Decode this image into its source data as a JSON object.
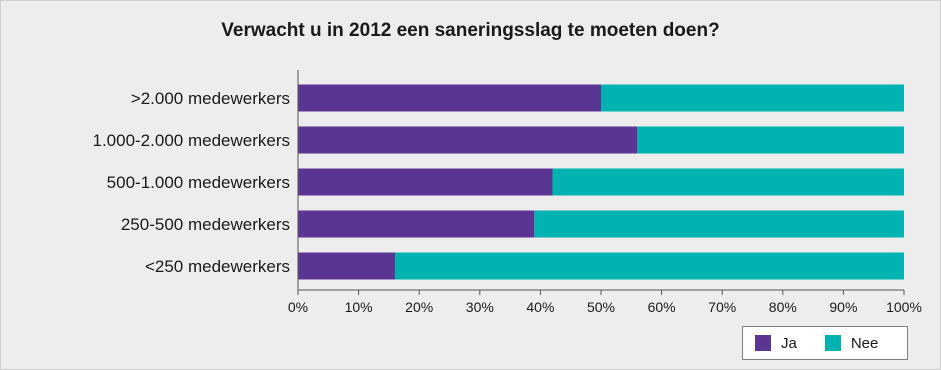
{
  "chart_data": {
    "type": "bar",
    "orientation": "horizontal",
    "stacked": true,
    "title": "Verwacht u in 2012 een saneringsslag te moeten doen?",
    "categories": [
      ">2.000 medewerkers",
      "1.000-2.000 medewerkers",
      "500-1.000 medewerkers",
      "250-500 medewerkers",
      "<250 medewerkers"
    ],
    "series": [
      {
        "name": "Ja",
        "color": "#5a3594",
        "values": [
          50,
          56,
          42,
          39,
          16
        ]
      },
      {
        "name": "Nee",
        "color": "#00b2b0",
        "values": [
          50,
          44,
          58,
          61,
          84
        ]
      }
    ],
    "xlim": [
      0,
      100
    ],
    "xticks": [
      "0%",
      "10%",
      "20%",
      "30%",
      "40%",
      "50%",
      "60%",
      "70%",
      "80%",
      "90%",
      "100%"
    ],
    "legend_position": "bottom-right",
    "grid": false
  }
}
